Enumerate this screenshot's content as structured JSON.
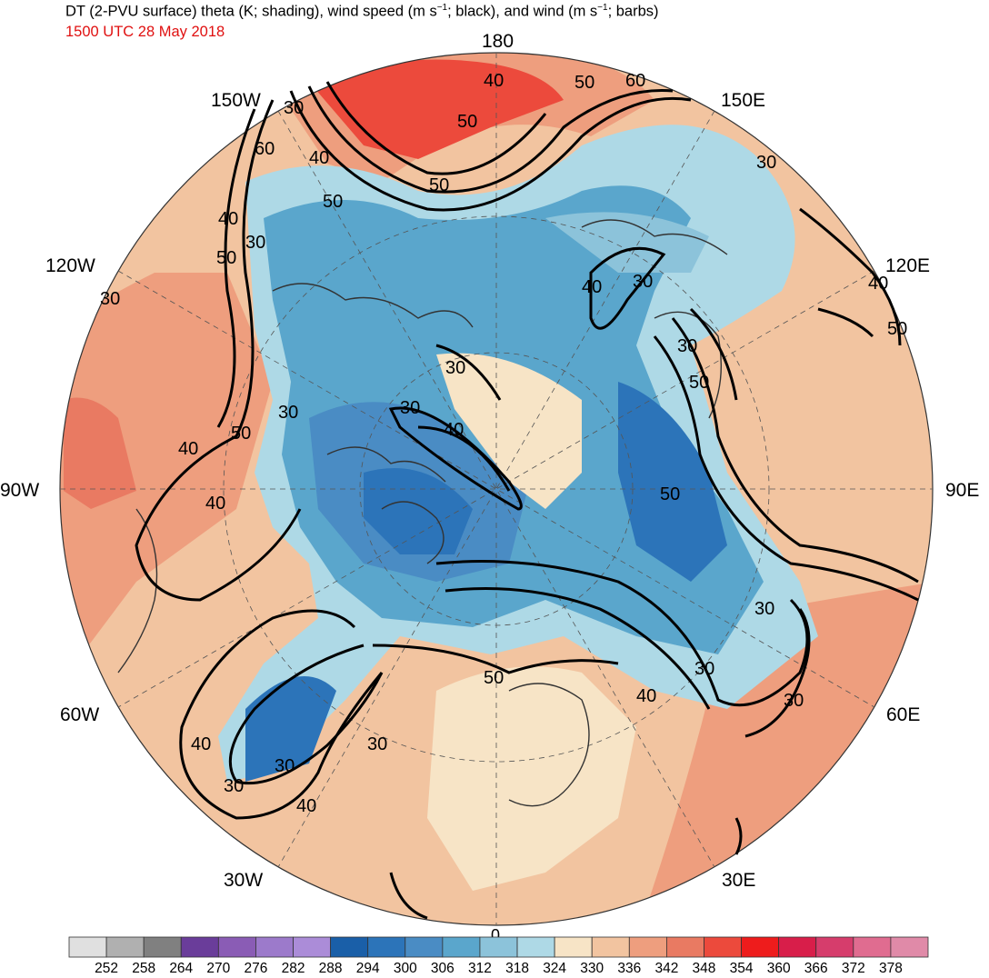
{
  "title_main": "DT (2-PVU surface) theta (K; shading), wind speed (m s",
  "title_sup1": "−1",
  "title_mid": "; black), and wind (m s",
  "title_sup2": "−1",
  "title_end": "; barbs)",
  "valid_time": "1500 UTC 28 May 2018",
  "longitude_labels": {
    "lon_180": "180",
    "lon_150w": "150W",
    "lon_150e": "150E",
    "lon_120w": "120W",
    "lon_120e": "120E",
    "lon_90w": "90W",
    "lon_90e": "90E",
    "lon_60w": "60W",
    "lon_60e": "60E",
    "lon_30w": "30W",
    "lon_30e": "30E",
    "lon_0": "0"
  },
  "wind_contour_labels": [
    "30",
    "40",
    "50",
    "60",
    "50",
    "40",
    "50",
    "50",
    "60",
    "30",
    "30",
    "40",
    "50",
    "30",
    "40",
    "30",
    "40",
    "50",
    "30",
    "50",
    "30",
    "30",
    "40",
    "30",
    "50",
    "40",
    "40",
    "50",
    "30",
    "40",
    "30",
    "30",
    "50",
    "30",
    "40",
    "30",
    "30",
    "40"
  ],
  "colorbar": {
    "colors": [
      "#e0e0e0",
      "#b0b0b0",
      "#808080",
      "#6a3d9a",
      "#8a5cb5",
      "#9c7acb",
      "#ab8cd8",
      "#1a5fa8",
      "#2c74b9",
      "#4a8cc4",
      "#5aa6cc",
      "#8cc3da",
      "#aed9e6",
      "#f7e4c6",
      "#f2c4a0",
      "#ee9e7e",
      "#e97a62",
      "#ec4a3c",
      "#ee1c1c",
      "#d81e4a",
      "#d63d6c",
      "#e06c90",
      "#e08aa8"
    ],
    "tick_labels": [
      "252",
      "258",
      "264",
      "270",
      "276",
      "282",
      "288",
      "294",
      "300",
      "306",
      "312",
      "318",
      "324",
      "330",
      "336",
      "342",
      "348",
      "354",
      "360",
      "366",
      "372",
      "378"
    ]
  }
}
